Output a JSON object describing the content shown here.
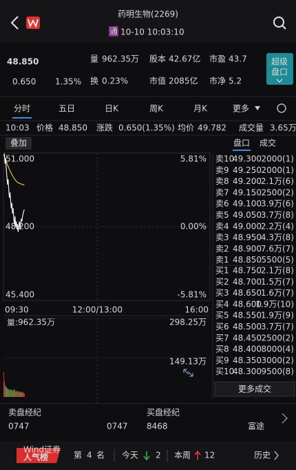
{
  "header": {
    "title": "药明生物(2269)",
    "badge": "通",
    "time": "10-10 10:03:10"
  },
  "quote": {
    "price": "48.850",
    "change": "0.650",
    "change_pct": "1.35%",
    "stats": [
      {
        "label": "量",
        "value": "962.35万"
      },
      {
        "label": "股本",
        "value": "42.67亿"
      },
      {
        "label": "市盈",
        "value": "43.7"
      },
      {
        "label": "换",
        "value": "0.23%"
      },
      {
        "label": "市值",
        "value": "2085亿"
      },
      {
        "label": "市净",
        "value": "5.2"
      }
    ],
    "super_button": [
      "超级",
      "盘口"
    ]
  },
  "tabs": [
    "分时",
    "五日",
    "日K",
    "周K",
    "月K",
    "更多"
  ],
  "info_row": {
    "time": "10:03",
    "items": [
      {
        "label": "价格",
        "value": "48.850"
      },
      {
        "label": "涨跌",
        "value": "0.650(1.35%)"
      },
      {
        "label": "均价",
        "value": "49.782"
      },
      {
        "label": "成交量",
        "value": "3.65万"
      }
    ]
  },
  "overlay_button": "叠加",
  "book_tabs": [
    "盘口",
    "成交"
  ],
  "intraday": {
    "ylim": [
      45.4,
      51
    ],
    "yticks": [
      {
        "value": 51,
        "label": "51.000"
      },
      {
        "value": 48.2,
        "label": "48.200"
      },
      {
        "value": 45.4,
        "label": "45.400"
      }
    ],
    "pct_labels": [
      "5.81%",
      "0.00%",
      "-5.81%"
    ],
    "xticks": [
      "09:30",
      "12:00/13:00",
      "16:00"
    ],
    "price": [
      50.9,
      50.95,
      50.6,
      50.8,
      50.4,
      50.1,
      49.8,
      50.0,
      49.6,
      49.3,
      49.5,
      49.2,
      48.9,
      49.1,
      48.7,
      48.9,
      48.5,
      48.3,
      48.6,
      48.2,
      48.4,
      48.1,
      48.3,
      48.0,
      48.2,
      48.4,
      48.1,
      48.3,
      48.5,
      48.4,
      48.6,
      48.7,
      48.8,
      48.85
    ],
    "avg": [
      50.9,
      50.88,
      50.8,
      50.77,
      50.7,
      50.62,
      50.55,
      50.5,
      50.44,
      50.38,
      50.33,
      50.28,
      50.23,
      50.18,
      50.14,
      50.1,
      50.06,
      50.02,
      49.99,
      49.96,
      49.93,
      49.91,
      49.89,
      49.87,
      49.86,
      49.85,
      49.84,
      49.83,
      49.82,
      49.81,
      49.8,
      49.79,
      49.79,
      49.78
    ],
    "volume_label": "量:962.35万",
    "volume_ylim": [
      0,
      298.25
    ],
    "volume_ticks": [
      {
        "value": 298.25,
        "label": "298.25万"
      },
      {
        "value": 149.13,
        "label": "149.13万"
      }
    ],
    "volume": [
      95,
      60,
      45,
      40,
      38,
      35,
      30,
      32,
      28,
      30,
      25,
      27,
      30,
      24,
      26,
      22,
      28,
      30,
      25,
      20,
      22,
      24,
      18,
      20,
      22,
      19,
      21,
      18,
      17,
      20,
      16,
      18,
      15,
      14
    ]
  },
  "order_book": {
    "asks": [
      [
        "卖10",
        "49.300",
        "2000(1)"
      ],
      [
        "卖9",
        "49.250",
        "2000(1)"
      ],
      [
        "卖8",
        "49.200",
        "2.1万(6)"
      ],
      [
        "卖7",
        "49.150",
        "2500(2)"
      ],
      [
        "卖6",
        "49.100",
        "3.9万(6)"
      ],
      [
        "卖5",
        "49.050",
        "3.7万(8)"
      ],
      [
        "卖4",
        "49.000",
        "2.2万(4)"
      ],
      [
        "卖3",
        "48.950",
        "4.3万(8)"
      ],
      [
        "卖2",
        "48.900",
        "7.6万(7)"
      ],
      [
        "卖1",
        "48.850",
        "5500(5)"
      ]
    ],
    "bids": [
      [
        "买1",
        "48.750",
        "2.1万(8)"
      ],
      [
        "买2",
        "48.700",
        "1.5万(7)"
      ],
      [
        "买3",
        "48.650",
        "1.6万(7)"
      ],
      [
        "买4",
        "48.600",
        "1.9万(10)"
      ],
      [
        "买5",
        "48.550",
        "1.9万(9)"
      ],
      [
        "买6",
        "48.500",
        "3.7万(7)"
      ],
      [
        "买7",
        "48.450",
        "2500(2)"
      ],
      [
        "买8",
        "48.400",
        "8000(4)"
      ],
      [
        "买9",
        "48.350",
        "3000(2)"
      ],
      [
        "买10",
        "48.300",
        "9500(8)"
      ]
    ],
    "more": "更多成交"
  },
  "brokers": {
    "sell_title": "卖盘经纪",
    "buy_title": "买盘经纪",
    "sell": [
      "0747",
      "0747"
    ],
    "buy": [
      "8468",
      "富途"
    ]
  },
  "ranking": {
    "badge_top": "Wind",
    "badge_corner": "证券",
    "badge_main": "人气榜",
    "prefix": "第",
    "rank": "4",
    "suffix": "名",
    "today": "今天",
    "today_value": "2",
    "week": "本周",
    "week_value": "12",
    "history": "历史"
  }
}
